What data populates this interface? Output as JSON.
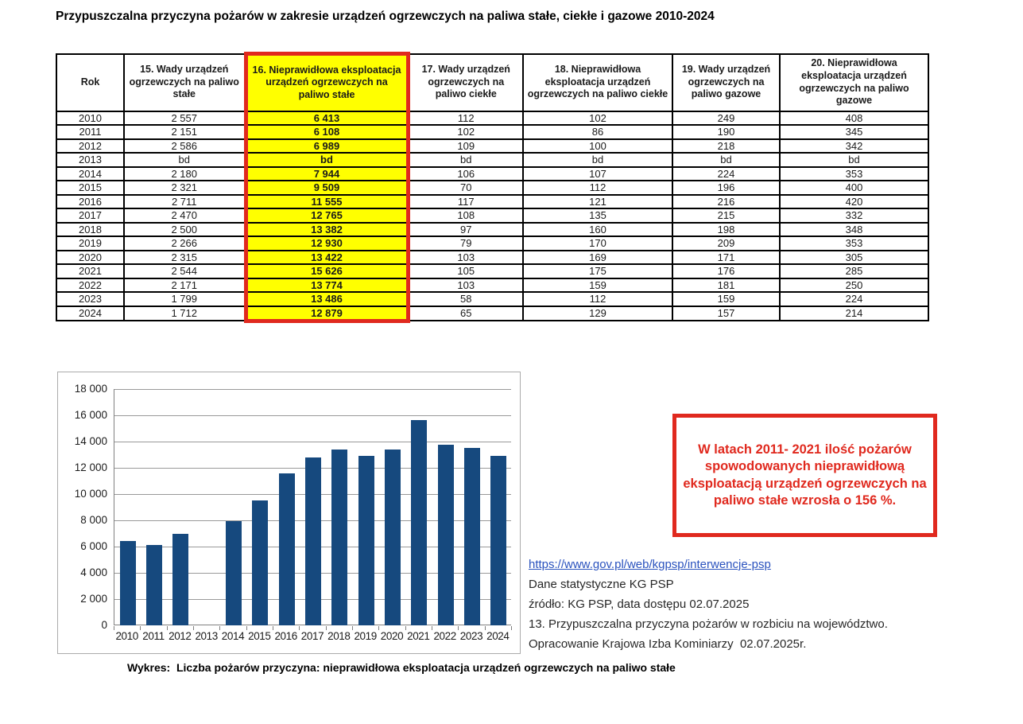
{
  "page": {
    "title": "Przypuszczalna przyczyna pożarów w zakresie urządzeń ogrzewczych na paliwa stałe, ciekłe i gazowe 2010-2024",
    "caption": "Wykres:  Liczba pożarów przyczyna: nieprawidłowa eksploatacja urządzeń ogrzewczych na paliwo stałe"
  },
  "colors": {
    "bar": "#16497E",
    "highlight_background": "#FFFF00",
    "highlight_border": "#E0291E",
    "annotation_text": "#E0291E",
    "link": "#2A52BE",
    "gridline": "#999999"
  },
  "table": {
    "columns": [
      "Rok",
      "15. Wady urządzeń ogrzewczych na paliwo stałe",
      "16. Nieprawidłowa eksploatacja urządzeń ogrzewczych na paliwo stałe",
      "17. Wady urządzeń ogrzewczych na paliwo ciekłe",
      "18. Nieprawidłowa eksploatacja urządzeń ogrzewczych na paliwo ciekłe",
      "19. Wady urządzeń ogrzewczych na paliwo gazowe",
      "20. Nieprawidłowa eksploatacja urządzeń ogrzewczych na paliwo gazowe"
    ],
    "highlight_column_index": 2,
    "rows": [
      [
        "2010",
        "2 557",
        "6 413",
        "112",
        "102",
        "249",
        "408"
      ],
      [
        "2011",
        "2 151",
        "6 108",
        "102",
        "86",
        "190",
        "345"
      ],
      [
        "2012",
        "2 586",
        "6 989",
        "109",
        "100",
        "218",
        "342"
      ],
      [
        "2013",
        "bd",
        "bd",
        "bd",
        "bd",
        "bd",
        "bd"
      ],
      [
        "2014",
        "2 180",
        "7 944",
        "106",
        "107",
        "224",
        "353"
      ],
      [
        "2015",
        "2 321",
        "9 509",
        "70",
        "112",
        "196",
        "400"
      ],
      [
        "2016",
        "2 711",
        "11 555",
        "117",
        "121",
        "216",
        "420"
      ],
      [
        "2017",
        "2 470",
        "12 765",
        "108",
        "135",
        "215",
        "332"
      ],
      [
        "2018",
        "2 500",
        "13 382",
        "97",
        "160",
        "198",
        "348"
      ],
      [
        "2019",
        "2 266",
        "12 930",
        "79",
        "170",
        "209",
        "353"
      ],
      [
        "2020",
        "2 315",
        "13 422",
        "103",
        "169",
        "171",
        "305"
      ],
      [
        "2021",
        "2 544",
        "15 626",
        "105",
        "175",
        "176",
        "285"
      ],
      [
        "2022",
        "2 171",
        "13 774",
        "103",
        "159",
        "181",
        "250"
      ],
      [
        "2023",
        "1 799",
        "13 486",
        "58",
        "112",
        "159",
        "224"
      ],
      [
        "2024",
        "1 712",
        "12 879",
        "65",
        "129",
        "157",
        "214"
      ]
    ]
  },
  "chart_data": {
    "type": "bar",
    "title": "",
    "xlabel": "",
    "ylabel": "",
    "categories": [
      "2010",
      "2011",
      "2012",
      "2013",
      "2014",
      "2015",
      "2016",
      "2017",
      "2018",
      "2019",
      "2020",
      "2021",
      "2022",
      "2023",
      "2024"
    ],
    "values": [
      6413,
      6108,
      6989,
      null,
      7944,
      9509,
      11555,
      12765,
      13382,
      12930,
      13422,
      15626,
      13774,
      13486,
      12879
    ],
    "ylim": [
      0,
      18000
    ],
    "ytick_step": 2000,
    "ytick_labels": [
      "0",
      "2 000",
      "4 000",
      "6 000",
      "8 000",
      "10 000",
      "12 000",
      "14 000",
      "16 000",
      "18 000"
    ],
    "grid": true,
    "legend": false
  },
  "annotation": {
    "text": "W latach  2011- 2021 ilość pożarów spowodowanych nieprawidłową eksploatacją urządzeń ogrzewczych na paliwo stałe wzrosła o 156 %."
  },
  "sources": {
    "link": "https://www.gov.pl/web/kgpsp/interwencje-psp",
    "lines": [
      "Dane statystyczne KG PSP",
      "źródło: KG PSP, data dostępu 02.07.2025",
      "13. Przypuszczalna przyczyna pożarów w rozbiciu na województwo.",
      "Opracowanie Krajowa Izba Kominiarzy  02.07.2025r."
    ]
  }
}
